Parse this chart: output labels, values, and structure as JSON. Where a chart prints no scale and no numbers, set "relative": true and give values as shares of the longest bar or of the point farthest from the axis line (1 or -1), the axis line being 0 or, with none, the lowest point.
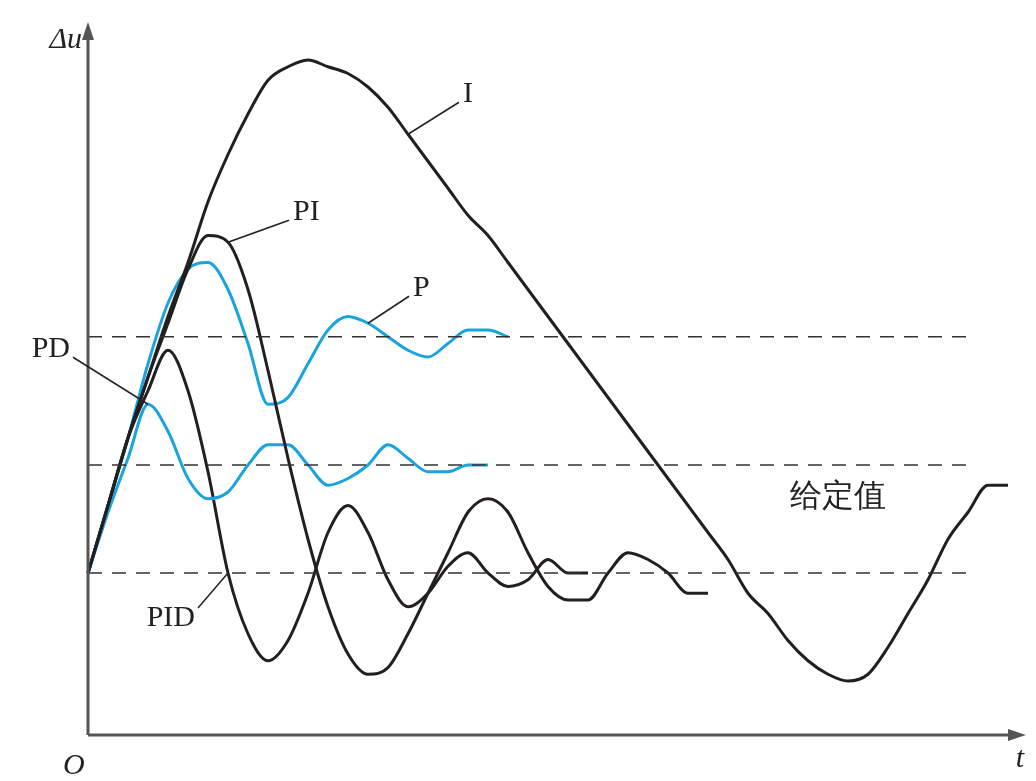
{
  "chart_data": {
    "type": "line",
    "relative": true,
    "xlabel": "t",
    "ylabel": "Δu",
    "categories": [
      null,
      null,
      null,
      null,
      null,
      null,
      null,
      null,
      null,
      null,
      null,
      null,
      null,
      null,
      null,
      null,
      null,
      null,
      null,
      null,
      null,
      null,
      null,
      null,
      null,
      null,
      null,
      null,
      null,
      null,
      null,
      null,
      null,
      null,
      null,
      null,
      null,
      null,
      null,
      null,
      null,
      null,
      null,
      null,
      null,
      null,
      null
    ],
    "series": [
      {
        "name": "I",
        "color": "#231f20",
        "values": [
          0.24,
          0.34,
          0.44,
          0.53,
          0.62,
          0.7,
          0.79,
          0.86,
          0.92,
          0.97,
          0.99,
          1.0,
          0.99,
          0.98,
          0.96,
          0.93,
          0.89,
          0.85,
          0.81,
          0.77,
          0.74,
          0.7,
          0.66,
          0.62,
          0.58,
          0.54,
          0.5,
          0.46,
          0.42,
          0.38,
          0.34,
          0.3,
          0.26,
          0.21,
          0.18,
          0.14,
          0.11,
          0.09,
          0.08,
          0.09,
          0.13,
          0.18,
          0.23,
          0.29,
          0.33,
          0.37,
          0.37
        ]
      },
      {
        "name": "PI",
        "color": "#231f20",
        "values": [
          0.24,
          0.34,
          0.44,
          0.53,
          0.61,
          0.69,
          0.74,
          0.73,
          0.66,
          0.54,
          0.41,
          0.29,
          0.19,
          0.12,
          0.09,
          0.1,
          0.15,
          0.21,
          0.27,
          0.33,
          0.35,
          0.33,
          0.27,
          0.22,
          0.2,
          0.2,
          0.24,
          0.27,
          0.26,
          0.24,
          0.21,
          0.21,
          null,
          null,
          null,
          null,
          null,
          null,
          null,
          null,
          null,
          null,
          null,
          null,
          null,
          null,
          null
        ]
      },
      {
        "name": "P",
        "color": "#1aa3dd",
        "values": [
          0.24,
          0.34,
          0.44,
          0.55,
          0.64,
          0.69,
          0.7,
          0.66,
          0.58,
          0.49,
          0.5,
          0.55,
          0.6,
          0.62,
          0.61,
          0.59,
          0.57,
          0.56,
          0.58,
          0.6,
          0.6,
          0.59,
          null,
          null,
          null,
          null,
          null,
          null,
          null,
          null,
          null,
          null,
          null,
          null,
          null,
          null,
          null,
          null,
          null,
          null,
          null,
          null,
          null,
          null,
          null,
          null,
          null
        ]
      },
      {
        "name": "PD",
        "color": "#1aa3dd",
        "values": [
          0.24,
          0.33,
          0.41,
          0.49,
          0.45,
          0.38,
          0.35,
          0.36,
          0.4,
          0.43,
          0.43,
          0.4,
          0.37,
          0.38,
          0.4,
          0.43,
          0.41,
          0.39,
          0.39,
          0.4,
          0.4,
          null,
          null,
          null,
          null,
          null,
          null,
          null,
          null,
          null,
          null,
          null,
          null,
          null,
          null,
          null,
          null,
          null,
          null,
          null,
          null,
          null,
          null,
          null,
          null,
          null,
          null
        ]
      },
      {
        "name": "PID",
        "color": "#231f20",
        "values": [
          0.24,
          0.34,
          0.44,
          0.51,
          0.57,
          0.51,
          0.39,
          0.24,
          0.15,
          0.11,
          0.14,
          0.21,
          0.3,
          0.34,
          0.3,
          0.23,
          0.19,
          0.21,
          0.25,
          0.27,
          0.24,
          0.22,
          0.23,
          0.26,
          0.24,
          0.24,
          null,
          null,
          null,
          null,
          null,
          null,
          null,
          null,
          null,
          null,
          null,
          null,
          null,
          null,
          null,
          null,
          null,
          null,
          null,
          null,
          null
        ]
      }
    ],
    "ref_lines": [
      {
        "axis": "y",
        "value": 0.59,
        "color": "#333333",
        "line_style": "dashed"
      },
      {
        "axis": "y",
        "value": 0.4,
        "color": "#333333",
        "line_style": "dashed"
      },
      {
        "axis": "y",
        "value": 0.24,
        "color": "#333333",
        "line_style": "dashed"
      }
    ],
    "annotations": [
      "O",
      "给定值"
    ],
    "grid": false,
    "marker": "none",
    "line_style": "solid"
  }
}
